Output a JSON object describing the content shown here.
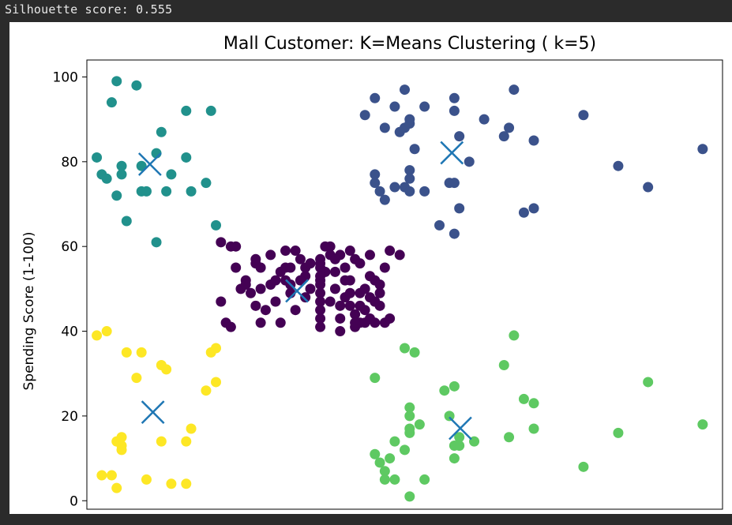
{
  "output": {
    "text": "Silhouette score: 0.555"
  },
  "chart_data": {
    "type": "scatter",
    "title": "Mall Customer: K=Means Clustering ( k=5)",
    "xlabel": "",
    "ylabel": "Spending Score (1-100)",
    "xlim": [
      13,
      141
    ],
    "ylim": [
      -2,
      104
    ],
    "yticks": [
      0,
      20,
      40,
      60,
      80,
      100
    ],
    "grid": false,
    "series": [
      {
        "cluster": 0,
        "color": "#440154",
        "points": [
          [
            40,
            61
          ],
          [
            42,
            60
          ],
          [
            43,
            60
          ],
          [
            43,
            55
          ],
          [
            44,
            50
          ],
          [
            45,
            52
          ],
          [
            46,
            49
          ],
          [
            47,
            56
          ],
          [
            47,
            46
          ],
          [
            48,
            55
          ],
          [
            48,
            50
          ],
          [
            48,
            42
          ],
          [
            49,
            45
          ],
          [
            50,
            51
          ],
          [
            50,
            58
          ],
          [
            51,
            47
          ],
          [
            51,
            52
          ],
          [
            52,
            42
          ],
          [
            52,
            54
          ],
          [
            53,
            59
          ],
          [
            53,
            55
          ],
          [
            54,
            55
          ],
          [
            54,
            49
          ],
          [
            54,
            51
          ],
          [
            55,
            45
          ],
          [
            56,
            57
          ],
          [
            57,
            53
          ],
          [
            57,
            55
          ],
          [
            58,
            50
          ],
          [
            60,
            56
          ],
          [
            60,
            52
          ],
          [
            61,
            54
          ],
          [
            62,
            47
          ],
          [
            62,
            60
          ],
          [
            63,
            54
          ],
          [
            63,
            50
          ],
          [
            64,
            43
          ],
          [
            64,
            46
          ],
          [
            65,
            48
          ],
          [
            65,
            52
          ],
          [
            65,
            55
          ],
          [
            67,
            57
          ],
          [
            67,
            41
          ],
          [
            68,
            56
          ],
          [
            68,
            49
          ],
          [
            69,
            45
          ],
          [
            69,
            50
          ],
          [
            70,
            58
          ],
          [
            71,
            42
          ],
          [
            71,
            52
          ],
          [
            60,
            57
          ],
          [
            60,
            55
          ],
          [
            60,
            53
          ],
          [
            60,
            51
          ],
          [
            60,
            49
          ],
          [
            60,
            47
          ],
          [
            60,
            45
          ],
          [
            60,
            43
          ],
          [
            60,
            41
          ],
          [
            62,
            58
          ],
          [
            64,
            58
          ],
          [
            66,
            52
          ],
          [
            66,
            49
          ],
          [
            66,
            46
          ],
          [
            67,
            44
          ],
          [
            68,
            42
          ],
          [
            69,
            42
          ],
          [
            70,
            43
          ],
          [
            70,
            48
          ],
          [
            70,
            53
          ],
          [
            71,
            47
          ],
          [
            72,
            49
          ],
          [
            72,
            46
          ],
          [
            73,
            42
          ],
          [
            74,
            43
          ],
          [
            74,
            59
          ],
          [
            76,
            58
          ],
          [
            73,
            55
          ],
          [
            40,
            47
          ],
          [
            41,
            42
          ],
          [
            42,
            41
          ],
          [
            45,
            51
          ],
          [
            47,
            57
          ],
          [
            53,
            52
          ],
          [
            55,
            59
          ],
          [
            56,
            52
          ],
          [
            57,
            48
          ],
          [
            58,
            56
          ],
          [
            61,
            60
          ],
          [
            63,
            57
          ],
          [
            64,
            40
          ],
          [
            66,
            59
          ],
          [
            67,
            42
          ],
          [
            68,
            46
          ],
          [
            71,
            47
          ],
          [
            72,
            51
          ]
        ]
      },
      {
        "cluster": 1,
        "color": "#3b528b",
        "points": [
          [
            69,
            91
          ],
          [
            71,
            95
          ],
          [
            71,
            77
          ],
          [
            71,
            75
          ],
          [
            72,
            73
          ],
          [
            73,
            88
          ],
          [
            73,
            71
          ],
          [
            75,
            93
          ],
          [
            75,
            74
          ],
          [
            76,
            87
          ],
          [
            77,
            97
          ],
          [
            77,
            88
          ],
          [
            77,
            74
          ],
          [
            78,
            89
          ],
          [
            78,
            90
          ],
          [
            78,
            78
          ],
          [
            78,
            76
          ],
          [
            78,
            73
          ],
          [
            79,
            83
          ],
          [
            81,
            93
          ],
          [
            86,
            75
          ],
          [
            87,
            95
          ],
          [
            87,
            92
          ],
          [
            87,
            75
          ],
          [
            87,
            63
          ],
          [
            88,
            86
          ],
          [
            88,
            69
          ],
          [
            93,
            90
          ],
          [
            97,
            86
          ],
          [
            98,
            88
          ],
          [
            99,
            97
          ],
          [
            101,
            68
          ],
          [
            103,
            85
          ],
          [
            103,
            69
          ],
          [
            113,
            91
          ],
          [
            120,
            79
          ],
          [
            126,
            74
          ],
          [
            137,
            83
          ],
          [
            81,
            73
          ],
          [
            84,
            65
          ],
          [
            90,
            80
          ]
        ]
      },
      {
        "cluster": 2,
        "color": "#21918c",
        "points": [
          [
            15,
            81
          ],
          [
            16,
            77
          ],
          [
            17,
            76
          ],
          [
            18,
            94
          ],
          [
            19,
            72
          ],
          [
            19,
            99
          ],
          [
            20,
            79
          ],
          [
            20,
            77
          ],
          [
            21,
            66
          ],
          [
            23,
            98
          ],
          [
            24,
            73
          ],
          [
            25,
            73
          ],
          [
            27,
            82
          ],
          [
            27,
            61
          ],
          [
            28,
            87
          ],
          [
            29,
            73
          ],
          [
            33,
            81
          ],
          [
            33,
            92
          ],
          [
            34,
            73
          ],
          [
            37,
            75
          ],
          [
            38,
            92
          ],
          [
            39,
            65
          ],
          [
            24,
            79
          ],
          [
            30,
            77
          ]
        ]
      },
      {
        "cluster": 3,
        "color": "#5ec962",
        "points": [
          [
            71,
            29
          ],
          [
            71,
            11
          ],
          [
            72,
            9
          ],
          [
            73,
            5
          ],
          [
            73,
            7
          ],
          [
            74,
            10
          ],
          [
            75,
            5
          ],
          [
            77,
            12
          ],
          [
            77,
            36
          ],
          [
            78,
            22
          ],
          [
            78,
            20
          ],
          [
            78,
            17
          ],
          [
            78,
            16
          ],
          [
            78,
            1
          ],
          [
            79,
            35
          ],
          [
            81,
            5
          ],
          [
            85,
            26
          ],
          [
            86,
            20
          ],
          [
            87,
            27
          ],
          [
            87,
            13
          ],
          [
            87,
            10
          ],
          [
            88,
            13
          ],
          [
            88,
            15
          ],
          [
            91,
            14
          ],
          [
            97,
            32
          ],
          [
            98,
            15
          ],
          [
            99,
            39
          ],
          [
            101,
            24
          ],
          [
            103,
            17
          ],
          [
            103,
            23
          ],
          [
            113,
            8
          ],
          [
            120,
            16
          ],
          [
            126,
            28
          ],
          [
            137,
            18
          ],
          [
            75,
            14
          ],
          [
            80,
            18
          ]
        ]
      },
      {
        "cluster": 4,
        "color": "#fde725",
        "points": [
          [
            15,
            39
          ],
          [
            16,
            6
          ],
          [
            17,
            40
          ],
          [
            18,
            6
          ],
          [
            19,
            3
          ],
          [
            19,
            14
          ],
          [
            20,
            15
          ],
          [
            20,
            13
          ],
          [
            21,
            35
          ],
          [
            23,
            29
          ],
          [
            24,
            35
          ],
          [
            25,
            5
          ],
          [
            28,
            14
          ],
          [
            28,
            32
          ],
          [
            29,
            31
          ],
          [
            30,
            4
          ],
          [
            33,
            4
          ],
          [
            33,
            14
          ],
          [
            34,
            17
          ],
          [
            37,
            26
          ],
          [
            38,
            35
          ],
          [
            39,
            36
          ],
          [
            39,
            28
          ],
          [
            20,
            12
          ]
        ]
      }
    ],
    "centroids": {
      "marker": "x",
      "color": "#1f77b4",
      "points": [
        [
          55.3,
          49.5
        ],
        [
          86.5,
          82.1
        ],
        [
          25.7,
          79.4
        ],
        [
          88.2,
          17.1
        ],
        [
          26.3,
          20.9
        ]
      ]
    }
  }
}
